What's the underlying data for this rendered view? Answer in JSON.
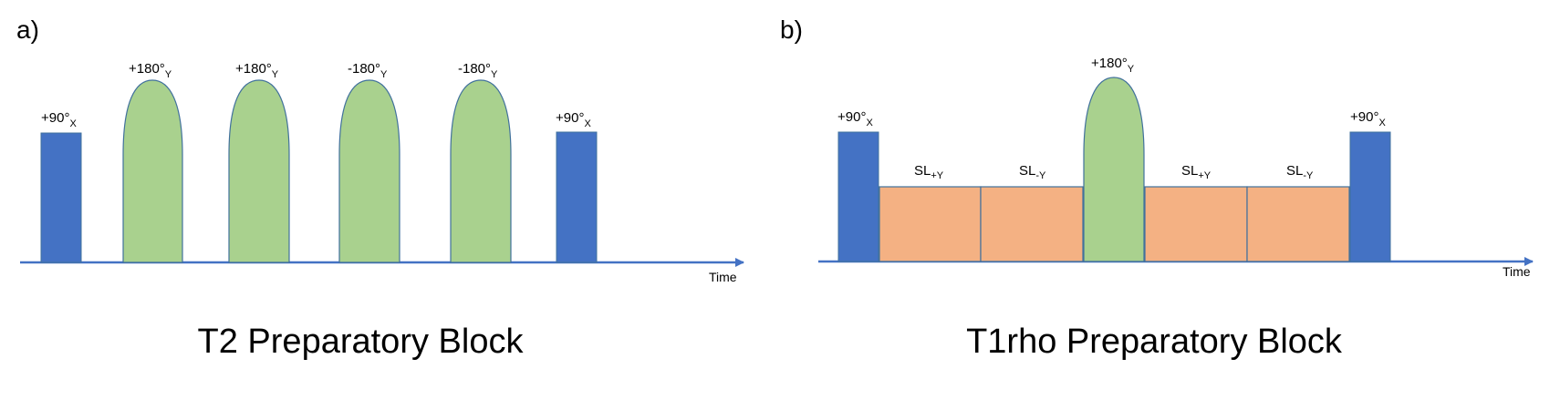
{
  "colors": {
    "excitation": "#4472c4",
    "refocus": "#a9d18e",
    "spinlock": "#f4b183",
    "outline": "#41719c",
    "axis": "#4472c4"
  },
  "panels": [
    {
      "letter": "a)",
      "title": "T2 Preparatory Block",
      "axis_label": "Time",
      "pulses": [
        {
          "kind": "excitation",
          "label": "+90°",
          "sub": "X"
        },
        {
          "kind": "refocus",
          "label": "+180°",
          "sub": "Y"
        },
        {
          "kind": "refocus",
          "label": "+180°",
          "sub": "Y"
        },
        {
          "kind": "refocus",
          "label": "-180°",
          "sub": "Y"
        },
        {
          "kind": "refocus",
          "label": "-180°",
          "sub": "Y"
        },
        {
          "kind": "excitation",
          "label": "+90°",
          "sub": "X"
        }
      ]
    },
    {
      "letter": "b)",
      "title": "T1rho Preparatory Block",
      "axis_label": "Time",
      "pulses": [
        {
          "kind": "excitation",
          "label": "+90°",
          "sub": "X"
        },
        {
          "kind": "spinlock",
          "label": "SL",
          "sub": "+Y"
        },
        {
          "kind": "spinlock",
          "label": "SL",
          "sub": "-Y"
        },
        {
          "kind": "refocus",
          "label": "+180°",
          "sub": "Y"
        },
        {
          "kind": "spinlock",
          "label": "SL",
          "sub": "+Y"
        },
        {
          "kind": "spinlock",
          "label": "SL",
          "sub": "-Y"
        },
        {
          "kind": "excitation",
          "label": "+90°",
          "sub": "X"
        }
      ]
    }
  ]
}
